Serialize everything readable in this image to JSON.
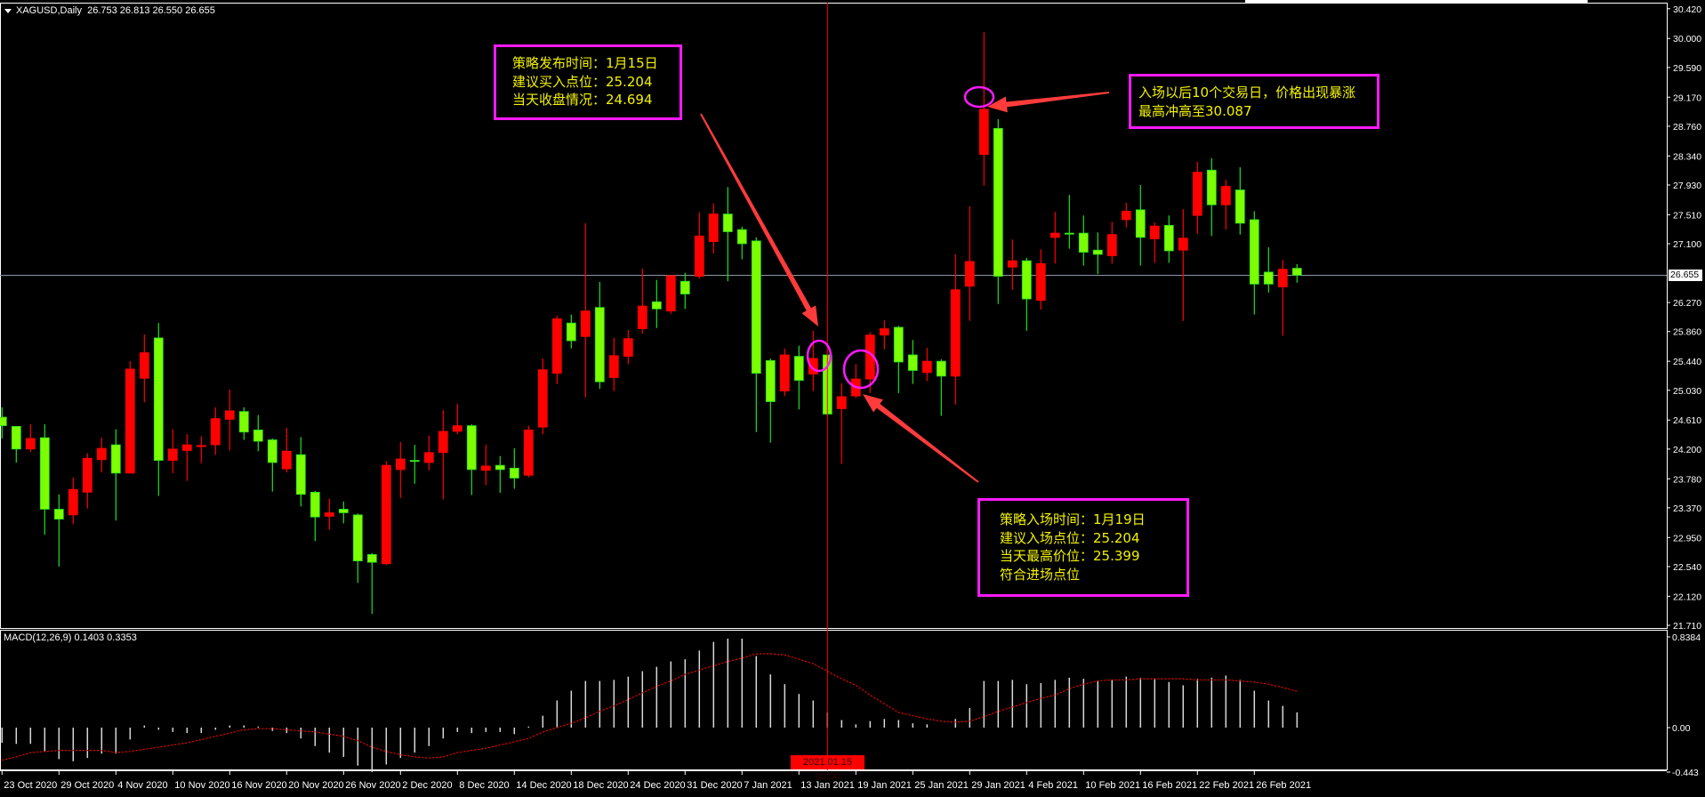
{
  "window": {
    "symbol_title": "XAGUSD,Daily",
    "ohlc_readout": "26.753 26.813 26.550 26.655",
    "macd_title": "MACD(12,26,9) 0.1403 0.3353",
    "current_price_label": "26.655",
    "crosshair_date_label": "2021.01.15 00:00"
  },
  "colors": {
    "background": "#000000",
    "bull_candle": "#ff0000",
    "bear_candle": "#7cff00",
    "annotation_border": "#ff1aff",
    "annotation_text": "#f2f200",
    "arrow": "#ff3b3b",
    "crosshair": "#ff0000",
    "signal_line": "#ff0000",
    "histogram": "#d8d8d8"
  },
  "annotations": {
    "publish_box": {
      "lines": [
        "策略发布时间：1月15日",
        "建议买入点位：25.204",
        "当天收盘情况：24.694"
      ]
    },
    "surge_box": {
      "lines": [
        "入场以后10个交易日，价格出现暴涨",
        "最高冲高至30.087"
      ]
    },
    "entry_box": {
      "lines": [
        "策略入场时间：1月19日",
        "建议入场点位：25.204",
        "当天最高价位：25.399",
        "符合进场点位"
      ]
    }
  },
  "chart_data": [
    {
      "type": "candlestick",
      "title": "XAGUSD,Daily",
      "ylim": [
        21.71,
        30.42
      ],
      "y_ticks": [
        "30.420",
        "30.000",
        "29.590",
        "29.170",
        "28.760",
        "28.340",
        "27.930",
        "27.510",
        "27.100",
        "26.270",
        "25.860",
        "25.440",
        "25.030",
        "24.610",
        "24.200",
        "23.780",
        "23.370",
        "22.950",
        "22.540",
        "22.120",
        "21.710"
      ],
      "x_ticks": [
        {
          "label": "23 Oct 2020",
          "bar": 0
        },
        {
          "label": "29 Oct 2020",
          "bar": 4
        },
        {
          "label": "4 Nov 2020",
          "bar": 8
        },
        {
          "label": "10 Nov 2020",
          "bar": 12
        },
        {
          "label": "16 Nov 2020",
          "bar": 16
        },
        {
          "label": "20 Nov 2020",
          "bar": 20
        },
        {
          "label": "26 Nov 2020",
          "bar": 24
        },
        {
          "label": "2 Dec 2020",
          "bar": 28
        },
        {
          "label": "8 Dec 2020",
          "bar": 32
        },
        {
          "label": "14 Dec 2020",
          "bar": 36
        },
        {
          "label": "18 Dec 2020",
          "bar": 40
        },
        {
          "label": "24 Dec 2020",
          "bar": 44
        },
        {
          "label": "31 Dec 2020",
          "bar": 48
        },
        {
          "label": "7 Jan 2021",
          "bar": 52
        },
        {
          "label": "13 Jan 2021",
          "bar": 56
        },
        {
          "label": "19 Jan 2021",
          "bar": 60
        },
        {
          "label": "25 Jan 2021",
          "bar": 64
        },
        {
          "label": "29 Jan 2021",
          "bar": 68
        },
        {
          "label": "4 Feb 2021",
          "bar": 72
        },
        {
          "label": "10 Feb 2021",
          "bar": 76
        },
        {
          "label": "16 Feb 2021",
          "bar": 80
        },
        {
          "label": "22 Feb 2021",
          "bar": 84
        },
        {
          "label": "26 Feb 2021",
          "bar": 88
        }
      ],
      "current_price": 26.655,
      "crosshair_bar": 58,
      "ohlc": [
        [
          24.65,
          24.79,
          24.35,
          24.53
        ],
        [
          24.52,
          24.52,
          24.01,
          24.2
        ],
        [
          24.2,
          24.55,
          24.16,
          24.35
        ],
        [
          24.36,
          24.55,
          22.99,
          23.35
        ],
        [
          23.35,
          23.56,
          22.54,
          23.21
        ],
        [
          23.27,
          23.8,
          23.14,
          23.63
        ],
        [
          23.59,
          24.14,
          23.36,
          24.07
        ],
        [
          24.05,
          24.36,
          23.87,
          24.21
        ],
        [
          24.26,
          24.48,
          23.19,
          23.86
        ],
        [
          23.86,
          25.44,
          23.86,
          25.33
        ],
        [
          25.2,
          25.82,
          24.86,
          25.56
        ],
        [
          25.77,
          25.98,
          23.54,
          24.04
        ],
        [
          24.04,
          24.48,
          23.86,
          24.2
        ],
        [
          24.18,
          24.41,
          23.75,
          24.26
        ],
        [
          24.24,
          24.38,
          24.0,
          24.25
        ],
        [
          24.26,
          24.79,
          24.12,
          24.63
        ],
        [
          24.62,
          25.04,
          24.18,
          24.74
        ],
        [
          24.73,
          24.79,
          24.33,
          24.44
        ],
        [
          24.47,
          24.68,
          24.17,
          24.31
        ],
        [
          24.33,
          24.35,
          23.6,
          24.01
        ],
        [
          23.92,
          24.5,
          23.87,
          24.17
        ],
        [
          24.12,
          24.37,
          23.39,
          23.56
        ],
        [
          23.59,
          23.61,
          22.9,
          23.24
        ],
        [
          23.25,
          23.5,
          23.06,
          23.3
        ],
        [
          23.35,
          23.46,
          23.15,
          23.3
        ],
        [
          23.27,
          23.29,
          22.31,
          22.62
        ],
        [
          22.71,
          22.73,
          21.87,
          22.6
        ],
        [
          22.58,
          24.03,
          22.56,
          23.97
        ],
        [
          23.91,
          24.3,
          23.51,
          24.06
        ],
        [
          24.04,
          24.26,
          23.71,
          24.03
        ],
        [
          24.01,
          24.39,
          23.9,
          24.15
        ],
        [
          24.15,
          24.75,
          23.49,
          24.45
        ],
        [
          24.45,
          24.84,
          24.41,
          24.53
        ],
        [
          24.53,
          24.55,
          23.55,
          23.91
        ],
        [
          23.9,
          24.26,
          23.69,
          23.96
        ],
        [
          23.97,
          24.1,
          23.58,
          23.91
        ],
        [
          23.93,
          24.21,
          23.64,
          23.79
        ],
        [
          23.83,
          24.53,
          23.8,
          24.47
        ],
        [
          24.51,
          25.48,
          24.41,
          25.32
        ],
        [
          25.27,
          26.08,
          25.12,
          26.04
        ],
        [
          25.98,
          26.1,
          25.62,
          25.73
        ],
        [
          25.79,
          27.39,
          24.93,
          26.15
        ],
        [
          26.2,
          26.56,
          25.05,
          25.15
        ],
        [
          25.21,
          25.77,
          25.02,
          25.52
        ],
        [
          25.51,
          25.88,
          25.4,
          25.76
        ],
        [
          25.9,
          26.75,
          25.83,
          26.22
        ],
        [
          26.28,
          26.59,
          25.91,
          26.18
        ],
        [
          26.15,
          26.65,
          26.11,
          26.65
        ],
        [
          26.57,
          26.69,
          26.18,
          26.39
        ],
        [
          26.64,
          27.54,
          26.61,
          27.21
        ],
        [
          27.13,
          27.67,
          26.96,
          27.52
        ],
        [
          27.52,
          27.9,
          26.57,
          27.27
        ],
        [
          27.3,
          27.34,
          26.88,
          27.1
        ],
        [
          27.14,
          27.19,
          24.44,
          25.27
        ],
        [
          25.45,
          25.48,
          24.29,
          24.87
        ],
        [
          25.02,
          25.62,
          24.95,
          25.53
        ],
        [
          25.51,
          25.66,
          24.76,
          25.17
        ],
        [
          25.26,
          25.87,
          25.02,
          25.48
        ],
        [
          25.53,
          25.53,
          24.67,
          24.694
        ],
        [
          24.77,
          25.13,
          23.99,
          24.94
        ],
        [
          24.95,
          25.399,
          24.92,
          25.19
        ],
        [
          25.19,
          25.85,
          24.99,
          25.81
        ],
        [
          25.81,
          26.02,
          25.61,
          25.9
        ],
        [
          25.92,
          25.94,
          24.99,
          25.43
        ],
        [
          25.53,
          25.74,
          25.12,
          25.31
        ],
        [
          25.28,
          25.63,
          25.16,
          25.44
        ],
        [
          25.44,
          25.47,
          24.67,
          25.23
        ],
        [
          25.23,
          26.95,
          24.83,
          26.45
        ],
        [
          26.5,
          27.63,
          26.01,
          26.85
        ],
        [
          28.36,
          30.087,
          27.92,
          29.0
        ],
        [
          28.73,
          28.86,
          26.25,
          26.64
        ],
        [
          26.77,
          27.16,
          26.45,
          26.86
        ],
        [
          26.86,
          26.9,
          25.87,
          26.32
        ],
        [
          26.3,
          27.02,
          26.17,
          26.82
        ],
        [
          27.19,
          27.55,
          26.82,
          27.25
        ],
        [
          27.25,
          27.79,
          27.03,
          27.24
        ],
        [
          27.25,
          27.5,
          26.79,
          26.98
        ],
        [
          27.01,
          27.26,
          26.67,
          26.95
        ],
        [
          26.93,
          27.41,
          26.82,
          27.23
        ],
        [
          27.44,
          27.68,
          27.33,
          27.56
        ],
        [
          27.58,
          27.93,
          26.79,
          27.19
        ],
        [
          27.17,
          27.4,
          26.83,
          27.35
        ],
        [
          27.36,
          27.5,
          26.83,
          27.0
        ],
        [
          27.01,
          27.59,
          26.01,
          27.18
        ],
        [
          27.5,
          28.26,
          27.24,
          28.11
        ],
        [
          28.14,
          28.31,
          27.21,
          27.65
        ],
        [
          27.65,
          28.0,
          27.3,
          27.91
        ],
        [
          27.86,
          28.18,
          27.23,
          27.39
        ],
        [
          27.44,
          27.56,
          26.1,
          26.53
        ],
        [
          26.7,
          27.05,
          26.41,
          26.53
        ],
        [
          26.49,
          26.87,
          25.8,
          26.74
        ],
        [
          26.753,
          26.813,
          26.55,
          26.655
        ]
      ]
    },
    {
      "type": "bar",
      "title": "MACD(12,26,9) 0.1403 0.3353",
      "ylim": [
        -0.443,
        0.8384
      ],
      "y_ticks": [
        "0.8384",
        "0.00",
        "-0.443"
      ],
      "histogram": [
        -0.14,
        -0.15,
        -0.15,
        -0.22,
        -0.29,
        -0.31,
        -0.28,
        -0.24,
        -0.24,
        -0.11,
        0.02,
        -0.02,
        -0.04,
        -0.05,
        -0.05,
        -0.02,
        0.02,
        0.02,
        0.01,
        -0.03,
        -0.05,
        -0.1,
        -0.17,
        -0.23,
        -0.27,
        -0.35,
        -0.41,
        -0.34,
        -0.28,
        -0.23,
        -0.17,
        -0.1,
        -0.04,
        -0.05,
        -0.04,
        -0.04,
        -0.06,
        0.01,
        0.11,
        0.25,
        0.34,
        0.43,
        0.43,
        0.44,
        0.47,
        0.52,
        0.56,
        0.61,
        0.63,
        0.71,
        0.79,
        0.82,
        0.82,
        0.66,
        0.49,
        0.4,
        0.31,
        0.25,
        0.14,
        0.07,
        0.03,
        0.06,
        0.08,
        0.07,
        0.04,
        0.03,
        0.0,
        0.08,
        0.18,
        0.43,
        0.43,
        0.44,
        0.4,
        0.41,
        0.44,
        0.46,
        0.45,
        0.43,
        0.44,
        0.47,
        0.46,
        0.45,
        0.42,
        0.39,
        0.45,
        0.46,
        0.48,
        0.44,
        0.34,
        0.25,
        0.2,
        0.1403
      ],
      "signal": [
        -0.3,
        -0.27,
        -0.23,
        -0.22,
        -0.21,
        -0.21,
        -0.21,
        -0.21,
        -0.23,
        -0.22,
        -0.2,
        -0.18,
        -0.16,
        -0.14,
        -0.11,
        -0.08,
        -0.05,
        -0.02,
        -0.01,
        -0.01,
        -0.02,
        -0.03,
        -0.04,
        -0.06,
        -0.08,
        -0.12,
        -0.18,
        -0.22,
        -0.25,
        -0.27,
        -0.28,
        -0.27,
        -0.23,
        -0.21,
        -0.19,
        -0.16,
        -0.13,
        -0.1,
        -0.04,
        0.0,
        0.04,
        0.09,
        0.15,
        0.2,
        0.26,
        0.32,
        0.38,
        0.43,
        0.49,
        0.53,
        0.57,
        0.61,
        0.64,
        0.68,
        0.68,
        0.67,
        0.63,
        0.59,
        0.52,
        0.45,
        0.39,
        0.3,
        0.22,
        0.14,
        0.11,
        0.08,
        0.06,
        0.05,
        0.06,
        0.1,
        0.15,
        0.19,
        0.23,
        0.27,
        0.3,
        0.36,
        0.4,
        0.43,
        0.44,
        0.44,
        0.45,
        0.45,
        0.45,
        0.45,
        0.44,
        0.44,
        0.44,
        0.43,
        0.42,
        0.4,
        0.37,
        0.3353
      ]
    }
  ]
}
